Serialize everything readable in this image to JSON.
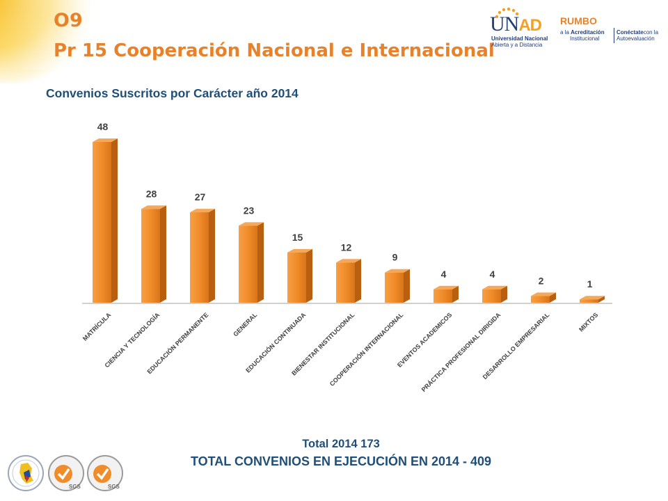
{
  "header": {
    "code": "O9",
    "title": "Pr 15 Cooperación Nacional e Internacional"
  },
  "logos": {
    "unad": {
      "brand_u": "U",
      "brand_n": "N",
      "brand_ad": "AD",
      "line1": "Universidad Nacional",
      "line2": "Abierta y a Distancia"
    },
    "rumbo": {
      "brand": "RUMBO",
      "left_line1_a": "a la ",
      "left_line1_b": "Acreditación",
      "left_line2": "Institucional",
      "right_line1_a": "Conéctate",
      "right_line1_b": "con la",
      "right_line2": "Autoevaluación"
    },
    "seal_text": "SGS"
  },
  "subtitle": "Convenios Suscritos por Carácter año 2014",
  "chart_data": {
    "type": "bar",
    "title": "Convenios Suscritos por Carácter año 2014",
    "categories": [
      "MATRÍCULA",
      "CIENCIA Y TECNOLOGÍA",
      "EDUCACIÓN PERMANENTE",
      "GENERAL",
      "EDUCACIÓN CONTINUADA",
      "BIENESTAR INSTITUCIONAL",
      "COOPERACIÓN INTERNACIONAL",
      "EVENTOS ACADEMICOS",
      "PRÁCTICA PROFESIONAL DIRIGIDA",
      "DESARROLLO EMPRESARIAL",
      "MIXTOS"
    ],
    "values": [
      48,
      28,
      27,
      23,
      15,
      12,
      9,
      4,
      4,
      2,
      1
    ],
    "ylim": [
      0,
      50
    ],
    "xlabel": "",
    "ylabel": "",
    "bar_color": "#f08c2a",
    "grid": false,
    "legend": "none"
  },
  "footer": {
    "total_2014": "Total 2014 173",
    "total_en_ejecucion": "TOTAL CONVENIOS EN EJECUCIÓN EN 2014 - 409"
  },
  "colors": {
    "accent_orange": "#e8822a",
    "title_blue": "#1f4e79"
  }
}
